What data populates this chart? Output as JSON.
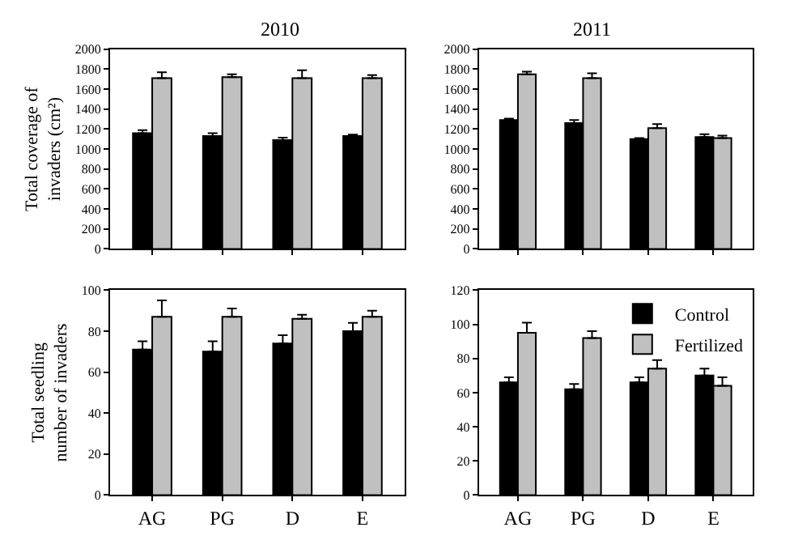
{
  "chart_data": [
    {
      "type": "bar",
      "title": "2010",
      "ylabel": "Total coverage of invaders (cm²)",
      "categories": [
        null,
        null,
        null,
        null
      ],
      "ylim": [
        0,
        2000
      ],
      "yticks": [
        0,
        200,
        400,
        600,
        800,
        1000,
        1200,
        1400,
        1600,
        1800,
        2000
      ],
      "grid": false,
      "legend": false,
      "series": [
        {
          "color": "#000000",
          "values": [
            1160,
            1130,
            1090,
            1130
          ],
          "errors": [
            [
              1160,
              1190
            ],
            [
              1130,
              1160
            ],
            [
              1090,
              1115
            ],
            [
              1130,
              1145
            ]
          ]
        },
        {
          "color": "#c0c0c0",
          "values": [
            1710,
            1720,
            1710,
            1710
          ],
          "errors": [
            [
              1710,
              1770
            ],
            [
              1720,
              1750
            ],
            [
              1710,
              1790
            ],
            [
              1710,
              1740
            ]
          ]
        }
      ]
    },
    {
      "type": "bar",
      "title": "2011",
      "categories": [
        null,
        null,
        null,
        null
      ],
      "ylim": [
        0,
        2000
      ],
      "yticks": [
        0,
        200,
        400,
        600,
        800,
        1000,
        1200,
        1400,
        1600,
        1800,
        2000
      ],
      "grid": false,
      "legend": false,
      "series": [
        {
          "color": "#000000",
          "values": [
            1290,
            1260,
            1100,
            1120
          ],
          "errors": [
            [
              1290,
              1305
            ],
            [
              1260,
              1290
            ],
            [
              1100,
              1110
            ],
            [
              1120,
              1150
            ]
          ]
        },
        {
          "color": "#c0c0c0",
          "values": [
            1750,
            1710,
            1210,
            1110
          ],
          "errors": [
            [
              1750,
              1775
            ],
            [
              1710,
              1760
            ],
            [
              1210,
              1250
            ],
            [
              1110,
              1135
            ]
          ]
        }
      ]
    },
    {
      "type": "bar",
      "ylabel": "Total seedling number of invaders",
      "categories": [
        "AG",
        "PG",
        "D",
        "E"
      ],
      "ylim": [
        0,
        100
      ],
      "yticks": [
        0,
        20,
        40,
        60,
        80,
        100
      ],
      "grid": false,
      "legend": false,
      "series": [
        {
          "color": "#000000",
          "values": [
            71,
            70,
            74,
            80
          ],
          "errors": [
            [
              71,
              75
            ],
            [
              70,
              75
            ],
            [
              74,
              78
            ],
            [
              80,
              84
            ]
          ]
        },
        {
          "color": "#c0c0c0",
          "values": [
            87,
            87,
            86,
            87
          ],
          "errors": [
            [
              87,
              95
            ],
            [
              87,
              91
            ],
            [
              86,
              88
            ],
            [
              87,
              90
            ]
          ]
        }
      ]
    },
    {
      "type": "bar",
      "categories": [
        "AG",
        "PG",
        "D",
        "E"
      ],
      "ylim": [
        0,
        120
      ],
      "yticks": [
        0,
        20,
        40,
        60,
        80,
        100,
        120
      ],
      "grid": false,
      "legend": "top right",
      "series": [
        {
          "name": "Control",
          "color": "#000000",
          "values": [
            66,
            62,
            66,
            70
          ],
          "errors": [
            [
              66,
              69
            ],
            [
              62,
              65
            ],
            [
              66,
              69
            ],
            [
              70,
              74
            ]
          ]
        },
        {
          "name": "Fertilized",
          "color": "#c0c0c0",
          "values": [
            95,
            92,
            74,
            64
          ],
          "errors": [
            [
              95,
              101
            ],
            [
              92,
              96
            ],
            [
              74,
              79
            ],
            [
              64,
              69
            ]
          ]
        }
      ]
    }
  ]
}
